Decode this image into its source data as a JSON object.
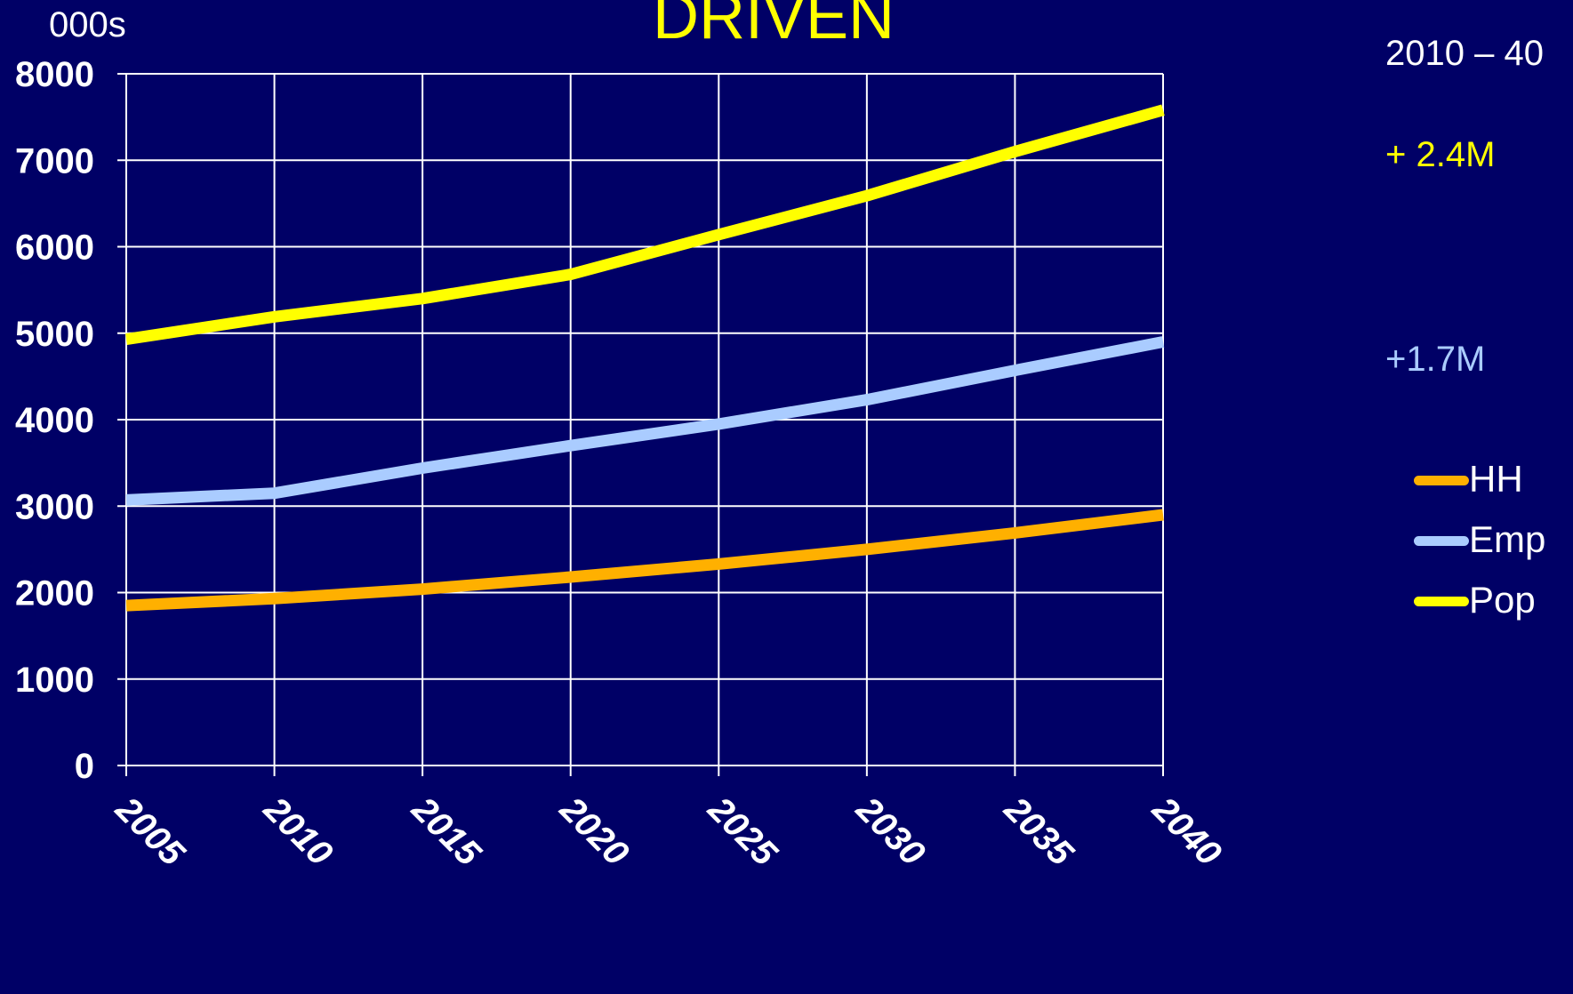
{
  "header": {
    "title": "DRIVEN",
    "unit_label": "000s"
  },
  "notes": {
    "range_label": "2010 – 40",
    "pop_change": "+ 2.4M",
    "emp_change": "+1.7M"
  },
  "chart_data": {
    "type": "line",
    "title": "DRIVEN",
    "ylabel": "000s",
    "xlabel": "",
    "x": [
      2005,
      2010,
      2015,
      2020,
      2025,
      2030,
      2035,
      2040
    ],
    "xlim": [
      2005,
      2040
    ],
    "ylim": [
      0,
      8000
    ],
    "yticks": [
      0,
      1000,
      2000,
      3000,
      4000,
      5000,
      6000,
      7000,
      8000
    ],
    "grid": true,
    "legend_position": "right",
    "series": [
      {
        "name": "HH",
        "color": "#ffb000",
        "values": [
          1850,
          1930,
          2040,
          2180,
          2330,
          2500,
          2690,
          2900
        ]
      },
      {
        "name": "Emp",
        "color": "#aaccff",
        "values": [
          3070,
          3150,
          3440,
          3700,
          3950,
          4230,
          4570,
          4900
        ]
      },
      {
        "name": "Pop",
        "color": "#ffff00",
        "values": [
          4930,
          5190,
          5400,
          5680,
          6140,
          6590,
          7100,
          7580
        ]
      }
    ]
  }
}
